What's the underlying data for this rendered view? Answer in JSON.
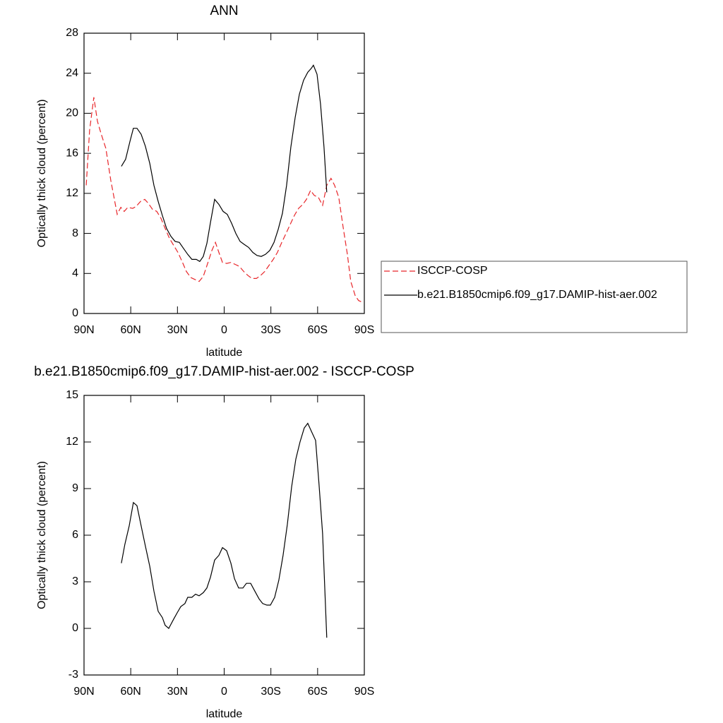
{
  "chart_data": [
    {
      "type": "line",
      "title": "ANN",
      "xlabel": "latitude",
      "ylabel": "Optically thick cloud (percent)",
      "xlim": [
        90,
        -90
      ],
      "xticks": [
        {
          "value": 90,
          "label": "90N"
        },
        {
          "value": 60,
          "label": "60N"
        },
        {
          "value": 30,
          "label": "30N"
        },
        0,
        {
          "value": -30,
          "label": "30S"
        },
        {
          "value": -60,
          "label": "60S"
        },
        {
          "value": -90,
          "label": "90S"
        }
      ],
      "ylim": [
        0,
        28
      ],
      "yticks": [
        0,
        4,
        8,
        12,
        16,
        20,
        24,
        28
      ],
      "legend": "right",
      "series": [
        {
          "name": "ISCCP-COSP",
          "color": "#e8262a",
          "dashed": true,
          "x": [
            88.6,
            86.4,
            83.7,
            81.4,
            79.1,
            76,
            72.8,
            68.7,
            66.4,
            64.2,
            61.9,
            58.7,
            56.5,
            53.7,
            51,
            48.7,
            46,
            43.3,
            40.6,
            37.9,
            35.1,
            32.4,
            29.7,
            27,
            24.3,
            21.5,
            18.8,
            16.1,
            13.4,
            10.6,
            7.9,
            5.6,
            3.4,
            1.1,
            -1.6,
            -4.3,
            -7.1,
            -9.8,
            -12.5,
            -15.2,
            -17.9,
            -20.7,
            -23.4,
            -26.1,
            -28.8,
            -31.5,
            -34.2,
            -37,
            -39.7,
            -42.4,
            -45.1,
            -47.8,
            -50.5,
            -52.8,
            -55.5,
            -57.8,
            -60.5,
            -63.2,
            -65.9,
            -68.6,
            -70.9,
            -73.6,
            -76.3,
            -79.1,
            -81.3,
            -84.1,
            -86.3,
            -89
          ],
          "values": [
            12.8,
            18.3,
            21.6,
            19.2,
            18.0,
            16.5,
            13.3,
            9.9,
            10.6,
            10.2,
            10.6,
            10.5,
            10.7,
            11.2,
            11.4,
            11.0,
            10.4,
            10.2,
            9.5,
            8.5,
            7.5,
            6.8,
            6.1,
            5.2,
            4.2,
            3.6,
            3.4,
            3.2,
            3.7,
            5.0,
            6.3,
            7.1,
            6.1,
            5.1,
            5.0,
            5.1,
            4.9,
            4.7,
            4.2,
            3.8,
            3.5,
            3.5,
            3.8,
            4.2,
            4.8,
            5.4,
            6.1,
            7.1,
            8.0,
            8.9,
            9.8,
            10.5,
            10.9,
            11.4,
            12.3,
            11.8,
            11.6,
            10.8,
            12.8,
            13.5,
            12.8,
            11.6,
            8.7,
            5.9,
            3.2,
            1.8,
            1.3,
            1.1
          ]
        },
        {
          "name": "b.e21.B1850cmip6.f09_g17.DAMIP-hist-aer.002",
          "color": "#000000",
          "dashed": false,
          "x": [
            66,
            63.3,
            60.5,
            58.3,
            56,
            53.3,
            50.6,
            47.8,
            45.1,
            42.4,
            39.7,
            37,
            34.2,
            31.5,
            28.8,
            26.1,
            23.4,
            20.7,
            17.9,
            15.7,
            13.4,
            11.1,
            8.8,
            6.1,
            3.4,
            0.7,
            -2,
            -4.8,
            -7.5,
            -10.2,
            -12.9,
            -15.7,
            -18.4,
            -21.1,
            -23.8,
            -26.5,
            -29.3,
            -32,
            -34.7,
            -37.4,
            -40.1,
            -42.8,
            -45.6,
            -48.3,
            -51,
            -53.7,
            -56,
            -57.3,
            -59.6,
            -61.9,
            -64.1,
            -65.9
          ],
          "values": [
            14.7,
            15.4,
            17.2,
            18.5,
            18.5,
            17.9,
            16.7,
            15.0,
            12.8,
            11.2,
            9.8,
            8.5,
            7.7,
            7.2,
            7.1,
            6.5,
            5.9,
            5.4,
            5.4,
            5.2,
            5.7,
            7.0,
            9.1,
            11.4,
            10.9,
            10.2,
            9.9,
            9.0,
            8.0,
            7.2,
            6.9,
            6.6,
            6.1,
            5.8,
            5.7,
            5.9,
            6.3,
            7.1,
            8.4,
            10.0,
            12.8,
            16.6,
            19.6,
            21.9,
            23.3,
            24.1,
            24.5,
            24.8,
            23.9,
            20.9,
            16.6,
            12.1
          ]
        }
      ]
    },
    {
      "type": "line",
      "title": "b.e21.B1850cmip6.f09_g17.DAMIP-hist-aer.002 - ISCCP-COSP",
      "xlabel": "latitude",
      "ylabel": "Optically thick cloud (percent)",
      "xlim": [
        90,
        -90
      ],
      "xticks": [
        {
          "value": 90,
          "label": "90N"
        },
        {
          "value": 60,
          "label": "60N"
        },
        {
          "value": 30,
          "label": "30N"
        },
        0,
        {
          "value": -30,
          "label": "30S"
        },
        {
          "value": -60,
          "label": "60S"
        },
        {
          "value": -90,
          "label": "90S"
        }
      ],
      "ylim": [
        -3,
        15
      ],
      "yticks": [
        -3,
        0,
        3,
        6,
        9,
        12,
        15
      ],
      "series": [
        {
          "color": "#000000",
          "dashed": false,
          "x": [
            66,
            63.8,
            61,
            58.3,
            56,
            53.3,
            50.6,
            47.8,
            45.1,
            42.4,
            39.7,
            37.9,
            35.6,
            32.4,
            30.2,
            27.9,
            25.2,
            23.4,
            20.7,
            18.4,
            16.1,
            13.4,
            11.1,
            8.8,
            6.1,
            3.4,
            1.1,
            -1.6,
            -4.3,
            -6.6,
            -9.3,
            -12,
            -14.3,
            -17,
            -19.7,
            -22.4,
            -24.7,
            -27.4,
            -29.7,
            -32.4,
            -35.1,
            -37.8,
            -40.6,
            -43.3,
            -46,
            -48.7,
            -51.4,
            -53.7,
            -56.4,
            -58.7,
            -60.9,
            -63.2,
            -65.9
          ],
          "values": [
            4.2,
            5.4,
            6.6,
            8.1,
            7.9,
            6.6,
            5.3,
            4.0,
            2.4,
            1.1,
            0.7,
            0.2,
            0.0,
            0.6,
            1.0,
            1.4,
            1.6,
            2.0,
            2.0,
            2.2,
            2.1,
            2.3,
            2.6,
            3.3,
            4.4,
            4.7,
            5.2,
            5.0,
            4.2,
            3.2,
            2.6,
            2.6,
            2.9,
            2.9,
            2.4,
            1.9,
            1.6,
            1.5,
            1.5,
            2.0,
            3.1,
            4.7,
            6.7,
            9.1,
            10.9,
            12.0,
            12.9,
            13.2,
            12.6,
            12.1,
            9.3,
            6.1,
            -0.6
          ]
        }
      ]
    }
  ]
}
